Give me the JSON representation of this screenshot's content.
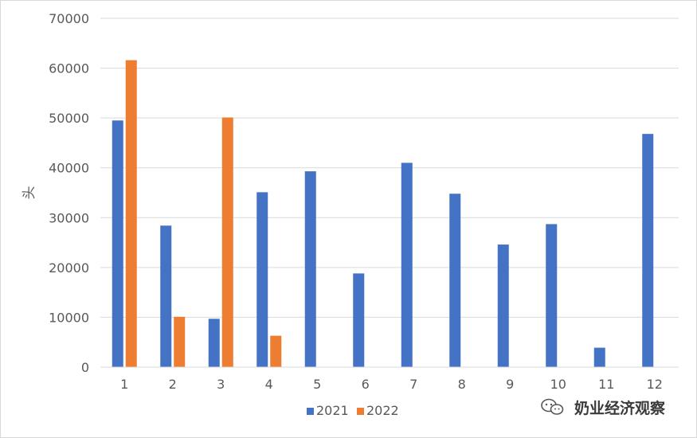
{
  "chart_data": {
    "type": "bar",
    "title": "",
    "xlabel": "",
    "ylabel": "头",
    "ylim": [
      0,
      70000
    ],
    "yticks": [
      0,
      10000,
      20000,
      30000,
      40000,
      50000,
      60000,
      70000
    ],
    "categories": [
      "1",
      "2",
      "3",
      "4",
      "5",
      "6",
      "7",
      "8",
      "9",
      "10",
      "11",
      "12"
    ],
    "series": [
      {
        "name": "2021",
        "color": "#4472C4",
        "values": [
          49500,
          28400,
          9700,
          35100,
          39300,
          18800,
          41000,
          34800,
          24600,
          28700,
          3900,
          46800
        ]
      },
      {
        "name": "2022",
        "color": "#ED7D31",
        "values": [
          61600,
          10100,
          50100,
          6300,
          null,
          null,
          null,
          null,
          null,
          null,
          null,
          null
        ]
      }
    ],
    "grid": true,
    "legend": "bottom-center"
  },
  "watermark": {
    "text": "奶业经济观察",
    "icon": "wechat-icon"
  }
}
